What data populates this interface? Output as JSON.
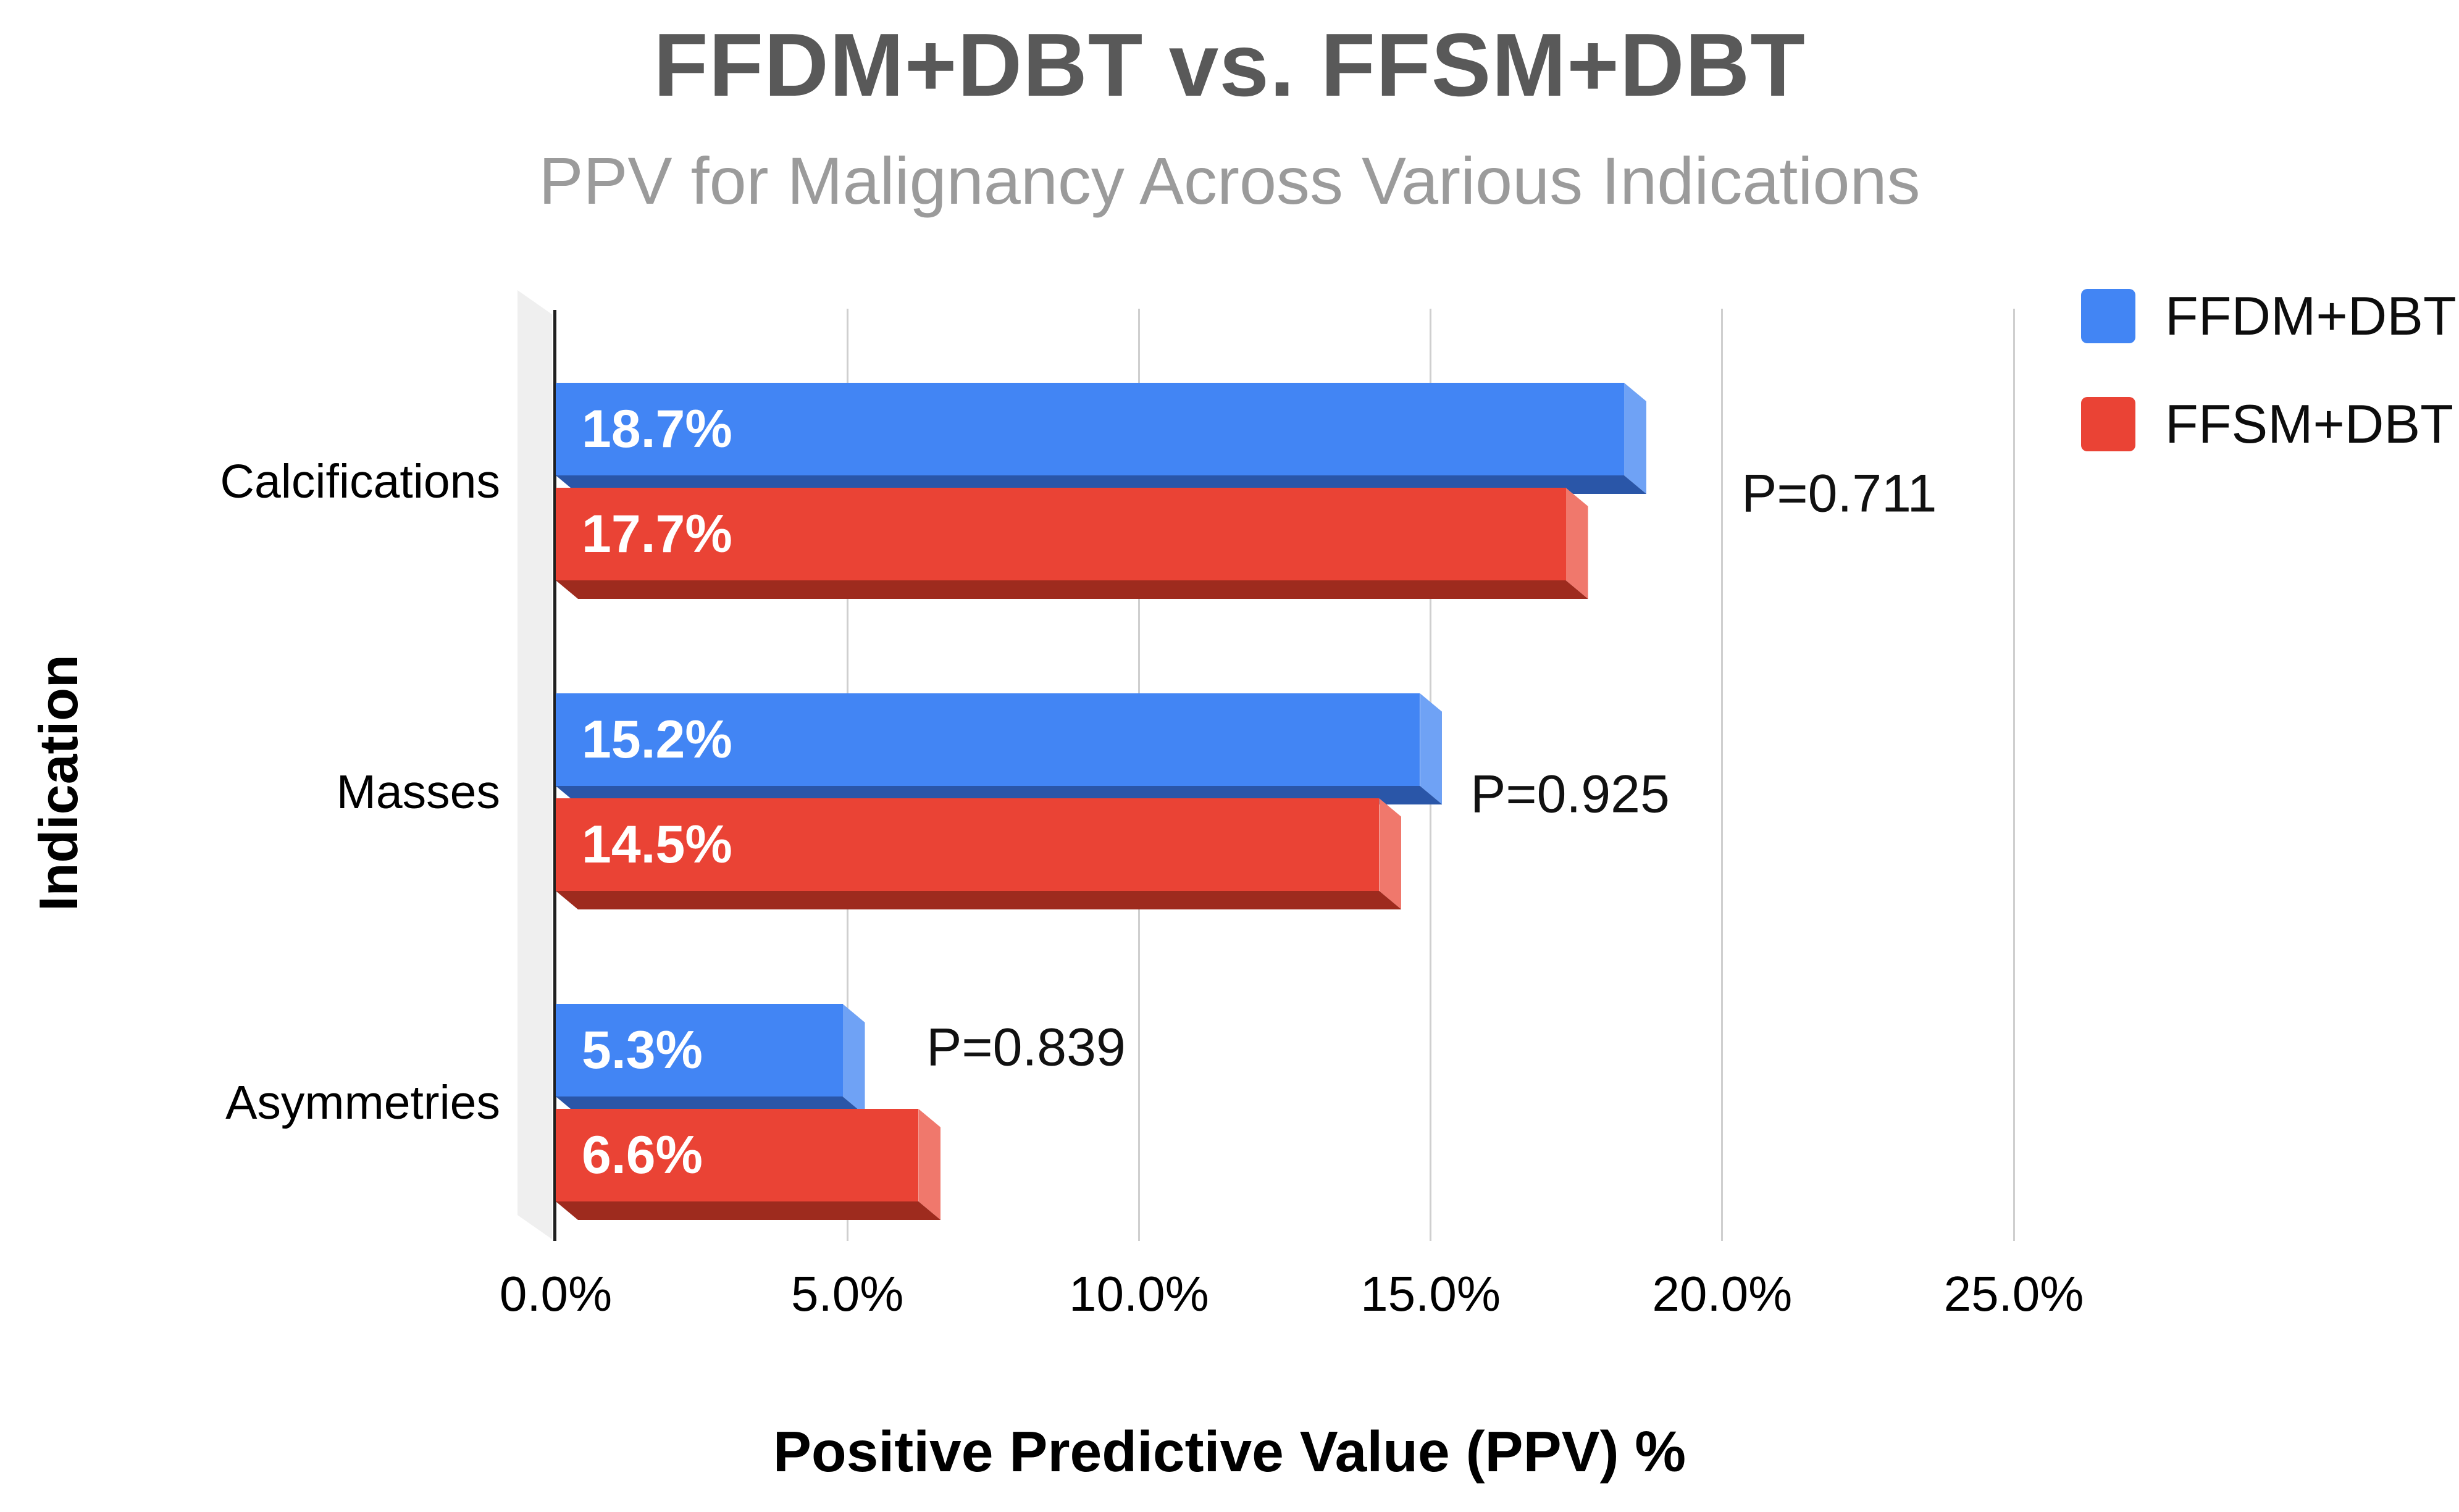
{
  "header": {
    "title": "FFDM+DBT vs. FFSM+DBT",
    "subtitle": "PPV for Malignancy Across Various Indications"
  },
  "legend": {
    "items": [
      {
        "label": "FFDM+DBT",
        "color": "#4285F4"
      },
      {
        "label": "FFSM+DBT",
        "color": "#EA4335"
      }
    ]
  },
  "axes": {
    "x_title": "Positive Predictive Value (PPV) %",
    "y_title": "Indication",
    "x_ticks": [
      "0.0%",
      "5.0%",
      "10.0%",
      "15.0%",
      "20.0%",
      "25.0%"
    ]
  },
  "chart_data": {
    "type": "bar",
    "orientation": "horizontal",
    "title": "FFDM+DBT vs. FFSM+DBT",
    "subtitle": "PPV for Malignancy Across Various Indications",
    "xlabel": "Positive Predictive Value (PPV) %",
    "ylabel": "Indication",
    "xlim": [
      0,
      25
    ],
    "x_tick_step": 5,
    "grid": "vertical-light-gray",
    "legend_position": "top-right",
    "categories": [
      "Calcifications",
      "Masses",
      "Asymmetries"
    ],
    "series": [
      {
        "name": "FFDM+DBT",
        "color": "#4285F4",
        "values": [
          18.7,
          15.2,
          5.3
        ],
        "labels": [
          "18.7%",
          "15.2%",
          "5.3%"
        ]
      },
      {
        "name": "FFSM+DBT",
        "color": "#EA4335",
        "values": [
          17.7,
          14.5,
          6.6
        ],
        "labels": [
          "17.7%",
          "14.5%",
          "6.6%"
        ]
      }
    ],
    "annotations": [
      {
        "category": "Calcifications",
        "label": "P=0.711"
      },
      {
        "category": "Masses",
        "label": "P=0.925"
      },
      {
        "category": "Asymmetries",
        "label": "P=0.839"
      }
    ]
  }
}
